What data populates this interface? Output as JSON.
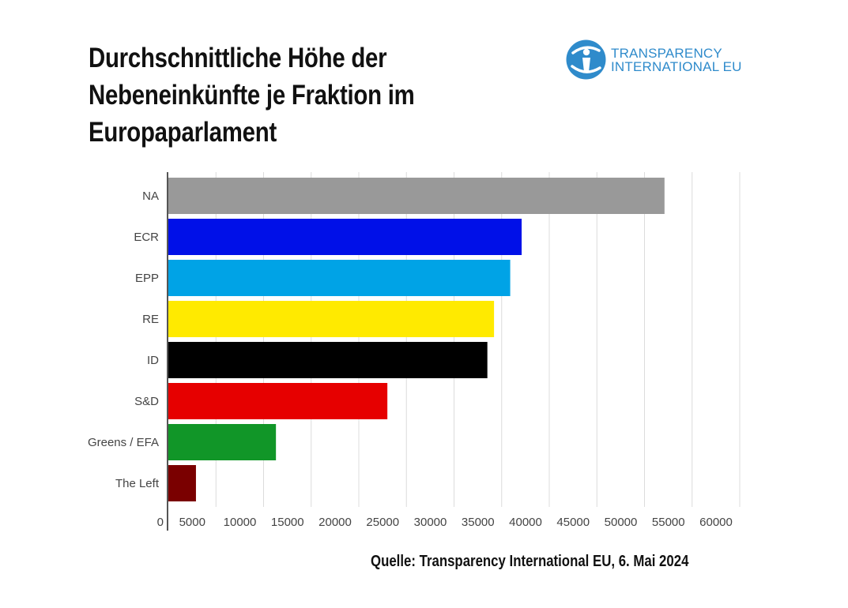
{
  "title": "Durchschnittliche Höhe der\nNebeneinkünfte je Fraktion im\nEuropaparlament",
  "logo": {
    "line1": "TRANSPARENCY",
    "line2": "INTERNATIONAL EU",
    "color": "#2f8bcb"
  },
  "source": "Quelle: Transparency International EU, 6. Mai 2024",
  "chart_data": {
    "type": "bar",
    "orientation": "horizontal",
    "categories": [
      "NA",
      "ECR",
      "EPP",
      "RE",
      "ID",
      "S&D",
      "Greens / EFA",
      "The Left"
    ],
    "values": [
      52100,
      37100,
      35900,
      34200,
      33500,
      23000,
      11300,
      2900
    ],
    "colors": [
      "#999999",
      "#0010e8",
      "#00a3e6",
      "#ffea00",
      "#000000",
      "#e60000",
      "#119628",
      "#7a0000"
    ],
    "xlim": [
      0,
      60000
    ],
    "xticks": [
      0,
      5000,
      10000,
      15000,
      20000,
      25000,
      30000,
      35000,
      40000,
      45000,
      50000,
      55000,
      60000
    ],
    "grid": true,
    "title": "Durchschnittliche Höhe der Nebeneinkünfte je Fraktion im Europaparlament",
    "xlabel": "",
    "ylabel": ""
  }
}
